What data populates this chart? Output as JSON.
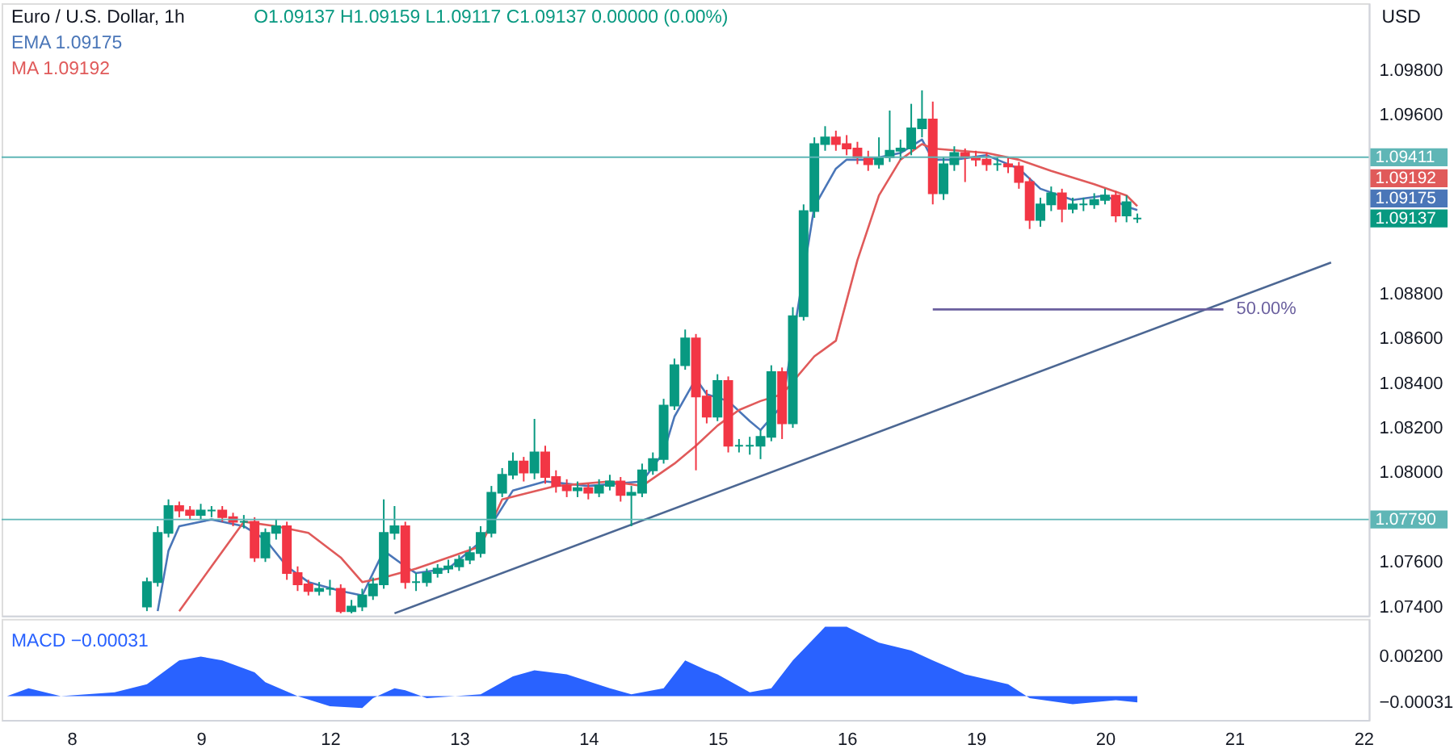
{
  "chart_data": [
    {
      "type": "candlestick",
      "title": "Euro / U.S. Dollar, 1h",
      "subtitle": "O1.09137 H1.09159 L1.09117 C1.09137 0.00000 (0.00%)",
      "ylabel": "USD",
      "legend": "top left",
      "tick_labels": "y",
      "categories": [
        null,
        null,
        null,
        null,
        null,
        null,
        "8",
        null,
        null,
        null,
        null,
        null,
        null,
        null,
        null,
        null,
        null,
        null,
        "9",
        null,
        null,
        null,
        null,
        null,
        null,
        null,
        null,
        null,
        null,
        null,
        "12",
        null,
        null,
        null,
        null,
        null,
        null,
        null,
        null,
        null,
        null,
        null,
        "13",
        null,
        null,
        null,
        null,
        null,
        null,
        null,
        null,
        null,
        null,
        null,
        "14",
        null,
        null,
        null,
        null,
        null,
        null,
        null,
        null,
        null,
        null,
        null,
        "15",
        null,
        null,
        null,
        null,
        null,
        null,
        null,
        null,
        null,
        null,
        null,
        "16",
        null,
        null,
        null,
        null,
        null,
        null,
        null,
        null,
        null,
        null,
        null,
        "19",
        null,
        null,
        null,
        null,
        null,
        null,
        null,
        null,
        null,
        null,
        null,
        "20",
        null,
        null,
        null,
        null,
        null,
        null,
        null,
        null,
        null,
        null,
        null,
        "21",
        null,
        null,
        null,
        null,
        null,
        null,
        null,
        null,
        null,
        null,
        null,
        "22"
      ],
      "ylim": [
        1.0736,
        1.101
      ],
      "yticks": [
        {
          "value": 1.074,
          "label": "1.07400"
        },
        {
          "value": 1.076,
          "label": "1.07600"
        },
        {
          "value": 1.08,
          "label": "1.08000"
        },
        {
          "value": 1.082,
          "label": "1.08200"
        },
        {
          "value": 1.084,
          "label": "1.08400"
        },
        {
          "value": 1.086,
          "label": "1.08600"
        },
        {
          "value": 1.088,
          "label": "1.08800"
        },
        {
          "value": 1.096,
          "label": "1.09600"
        },
        {
          "value": 1.098,
          "label": "1.09800"
        }
      ],
      "ohlc": [
        null,
        null,
        null,
        null,
        null,
        null,
        null,
        null,
        null,
        null,
        null,
        null,
        null,
        [
          1.074,
          1.0753,
          1.0738,
          1.0751
        ],
        [
          1.0751,
          1.0776,
          1.0749,
          1.0773
        ],
        [
          1.0773,
          1.0788,
          1.0771,
          1.0785
        ],
        [
          1.0785,
          1.0787,
          1.078,
          1.0783
        ],
        [
          1.0783,
          1.0785,
          1.0779,
          1.0781
        ],
        [
          1.0781,
          1.0786,
          1.0779,
          1.0783
        ],
        [
          1.0783,
          1.0785,
          1.078,
          1.0783
        ],
        [
          1.0783,
          1.0785,
          1.0778,
          1.078
        ],
        [
          1.078,
          1.0782,
          1.0776,
          1.0778
        ],
        [
          1.0778,
          1.0781,
          1.0775,
          1.0778
        ],
        [
          1.0778,
          1.078,
          1.076,
          1.0762
        ],
        [
          1.0762,
          1.0775,
          1.076,
          1.0773
        ],
        [
          1.0773,
          1.0779,
          1.077,
          1.0776
        ],
        [
          1.0776,
          1.0778,
          1.0752,
          1.0755
        ],
        [
          1.0755,
          1.0758,
          1.0747,
          1.075
        ],
        [
          1.075,
          1.0752,
          1.0745,
          1.0747
        ],
        [
          1.0747,
          1.0751,
          1.0745,
          1.0748
        ],
        [
          1.0748,
          1.0752,
          1.0745,
          1.0748
        ],
        [
          1.0748,
          1.075,
          1.0737,
          1.0738
        ],
        [
          1.0738,
          1.0743,
          1.0737,
          1.074
        ],
        [
          1.074,
          1.0748,
          1.0738,
          1.0745
        ],
        [
          1.0745,
          1.0753,
          1.0743,
          1.075
        ],
        [
          1.075,
          1.0788,
          1.0748,
          1.0773
        ],
        [
          1.0773,
          1.0785,
          1.077,
          1.0776
        ],
        [
          1.0776,
          1.0778,
          1.0748,
          1.0751
        ],
        [
          1.0751,
          1.0755,
          1.0747,
          1.0751
        ],
        [
          1.0751,
          1.0757,
          1.0749,
          1.0755
        ],
        [
          1.0755,
          1.0759,
          1.0753,
          1.0757
        ],
        [
          1.0757,
          1.0761,
          1.0755,
          1.0758
        ],
        [
          1.0758,
          1.0763,
          1.0756,
          1.0761
        ],
        [
          1.0761,
          1.0767,
          1.0759,
          1.0764
        ],
        [
          1.0764,
          1.0776,
          1.0762,
          1.0773
        ],
        [
          1.0773,
          1.0794,
          1.0771,
          1.0791
        ],
        [
          1.0791,
          1.0802,
          1.0789,
          1.0799
        ],
        [
          1.0799,
          1.0809,
          1.0797,
          1.0805
        ],
        [
          1.0805,
          1.0807,
          1.0796,
          1.08
        ],
        [
          1.08,
          1.0824,
          1.0797,
          1.0809
        ],
        [
          1.0809,
          1.0812,
          1.0795,
          1.0798
        ],
        [
          1.0798,
          1.0801,
          1.0791,
          1.0794
        ],
        [
          1.0794,
          1.0797,
          1.0789,
          1.0792
        ],
        [
          1.0792,
          1.0796,
          1.0789,
          1.0793
        ],
        [
          1.0793,
          1.0795,
          1.0788,
          1.0791
        ],
        [
          1.0791,
          1.0797,
          1.0789,
          1.0794
        ],
        [
          1.0794,
          1.0799,
          1.0792,
          1.0796
        ],
        [
          1.0796,
          1.0798,
          1.0787,
          1.079
        ],
        [
          1.079,
          1.0794,
          1.0776,
          1.0791
        ],
        [
          1.0791,
          1.0804,
          1.0789,
          1.0801
        ],
        [
          1.0801,
          1.0809,
          1.0799,
          1.0806
        ],
        [
          1.0806,
          1.0833,
          1.0804,
          1.083
        ],
        [
          1.083,
          1.0851,
          1.0828,
          1.0848
        ],
        [
          1.0848,
          1.0864,
          1.0846,
          1.086
        ],
        [
          1.086,
          1.0862,
          1.0801,
          1.0834
        ],
        [
          1.0834,
          1.0837,
          1.0822,
          1.0825
        ],
        [
          1.0825,
          1.0844,
          1.0823,
          1.0841
        ],
        [
          1.0841,
          1.0843,
          1.0809,
          1.0812
        ],
        [
          1.0812,
          1.0815,
          1.0809,
          1.0812
        ],
        [
          1.0812,
          1.0816,
          1.0808,
          1.0812
        ],
        [
          1.0812,
          1.0819,
          1.0806,
          1.0816
        ],
        [
          1.0816,
          1.0848,
          1.0814,
          1.0845
        ],
        [
          1.0845,
          1.0847,
          1.0815,
          1.0822
        ],
        [
          1.0822,
          1.0874,
          1.082,
          1.087
        ],
        [
          1.087,
          1.092,
          1.0868,
          1.0917
        ],
        [
          1.0917,
          1.095,
          1.0914,
          1.0947
        ],
        [
          1.0947,
          1.0955,
          1.0944,
          1.095
        ],
        [
          1.095,
          1.0953,
          1.0944,
          1.0947
        ],
        [
          1.0947,
          1.0951,
          1.0942,
          1.0945
        ],
        [
          1.0945,
          1.0948,
          1.0938,
          1.0941
        ],
        [
          1.0941,
          1.0944,
          1.0935,
          1.0938
        ],
        [
          1.0938,
          1.095,
          1.0936,
          1.0941
        ],
        [
          1.0941,
          1.0962,
          1.0939,
          1.0944
        ],
        [
          1.0944,
          1.0949,
          1.094,
          1.0945
        ],
        [
          1.0945,
          1.0965,
          1.0942,
          1.0954
        ],
        [
          1.0954,
          1.0971,
          1.095,
          1.0958
        ],
        [
          1.0958,
          1.0966,
          1.092,
          1.0925
        ],
        [
          1.0925,
          1.0941,
          1.0922,
          1.0938
        ],
        [
          1.0938,
          1.0946,
          1.0935,
          1.0943
        ],
        [
          1.0943,
          1.0945,
          1.093,
          1.0941
        ],
        [
          1.0941,
          1.0944,
          1.0937,
          1.094
        ],
        [
          1.094,
          1.0943,
          1.0935,
          1.0938
        ],
        [
          1.0938,
          1.0941,
          1.0935,
          1.0938
        ],
        [
          1.0938,
          1.0941,
          1.0934,
          1.0937
        ],
        [
          1.0937,
          1.0939,
          1.0927,
          1.093
        ],
        [
          1.093,
          1.0932,
          1.0909,
          1.0913
        ],
        [
          1.0913,
          1.0923,
          1.091,
          1.092
        ],
        [
          1.092,
          1.0928,
          1.0917,
          1.0925
        ],
        [
          1.0925,
          1.0927,
          1.0912,
          1.0918
        ],
        [
          1.0918,
          1.0923,
          1.0916,
          1.092
        ],
        [
          1.092,
          1.0923,
          1.0917,
          1.092
        ],
        [
          1.092,
          1.0925,
          1.0918,
          1.0922
        ],
        [
          1.0922,
          1.0927,
          1.092,
          1.0924
        ],
        [
          1.0924,
          1.0926,
          1.0912,
          1.0915
        ],
        [
          1.0915,
          1.0924,
          1.0912,
          1.0921
        ],
        [
          1.09137,
          1.09159,
          1.09117,
          1.09137
        ],
        null,
        null,
        null,
        null,
        null,
        null,
        null,
        null,
        null,
        null,
        null,
        null,
        null,
        null,
        null,
        null,
        null,
        null,
        null,
        null,
        null
      ],
      "colors": [
        null,
        null,
        null,
        null,
        null,
        null,
        null,
        null,
        null,
        null,
        null,
        null,
        null,
        "#089981",
        "#089981",
        "#089981",
        "#f23645",
        "#f23645",
        "#089981",
        "#089981",
        "#f23645",
        "#f23645",
        "#089981",
        "#f23645",
        "#089981",
        "#089981",
        "#f23645",
        "#f23645",
        "#f23645",
        "#089981",
        "#089981",
        "#f23645",
        "#089981",
        "#089981",
        "#089981",
        "#089981",
        "#089981",
        "#f23645",
        "#089981",
        "#089981",
        "#089981",
        "#089981",
        "#089981",
        "#089981",
        "#089981",
        "#089981",
        "#089981",
        "#089981",
        "#f23645",
        "#089981",
        "#f23645",
        "#f23645",
        "#f23645",
        "#089981",
        "#f23645",
        "#089981",
        "#089981",
        "#f23645",
        "#089981",
        "#089981",
        "#089981",
        "#089981",
        "#089981",
        "#089981",
        "#f23645",
        "#f23645",
        "#089981",
        "#f23645",
        "#089981",
        "#089981",
        "#089981",
        "#089981",
        "#f23645",
        "#089981",
        "#089981",
        "#089981",
        "#089981",
        "#f23645",
        "#f23645",
        "#f23645",
        "#f23645",
        "#089981",
        "#089981",
        "#089981",
        "#089981",
        "#089981",
        "#f23645",
        "#089981",
        "#089981",
        "#f23645",
        "#f23645",
        "#f23645",
        "#089981",
        "#f23645",
        "#f23645",
        "#f23645",
        "#089981",
        "#089981",
        "#f23645",
        "#089981",
        "#089981",
        "#089981",
        "#089981",
        "#f23645",
        "#089981",
        "#089981",
        null,
        null,
        null,
        null,
        null,
        null,
        null,
        null,
        null,
        null,
        null,
        null,
        null,
        null,
        null,
        null,
        null,
        null,
        null,
        null,
        null
      ],
      "value_labels": [
        null,
        null,
        null,
        null,
        null,
        null,
        null,
        null,
        null,
        null,
        null,
        null,
        null,
        null,
        null,
        null,
        null,
        null,
        null,
        null,
        null,
        null,
        null,
        null,
        null,
        null,
        null,
        null,
        null,
        null,
        null,
        null,
        null,
        null,
        null,
        null,
        null,
        null,
        null,
        null,
        null,
        null,
        null,
        null,
        null,
        null,
        null,
        null,
        null,
        null,
        null,
        null,
        null,
        null,
        null,
        null,
        null,
        null,
        null,
        null,
        null,
        null,
        null,
        null,
        null,
        null,
        null,
        null,
        null,
        null,
        null,
        null,
        null,
        null,
        null,
        null,
        null,
        null,
        null,
        null,
        null,
        null,
        null,
        null,
        null,
        null,
        null,
        null,
        null,
        null,
        null,
        null,
        null,
        null,
        null,
        null,
        null,
        null,
        null,
        null,
        null,
        null,
        null,
        null,
        null,
        "1.09137",
        null,
        null,
        null,
        null,
        null,
        null,
        null,
        null,
        null,
        null,
        null,
        null,
        null,
        null,
        null,
        null,
        null,
        null,
        null,
        null,
        null
      ],
      "series": [
        {
          "name": "EMA 1.09175",
          "type": "line",
          "color": "#4a76b8",
          "values": [
            null,
            null,
            null,
            null,
            null,
            null,
            null,
            null,
            null,
            null,
            null,
            null,
            null,
            null,
            1.0738,
            1.0765,
            1.0776,
            null,
            null,
            1.0779,
            null,
            null,
            1.0776,
            null,
            1.077,
            null,
            1.0758,
            null,
            1.0751,
            null,
            null,
            1.0747,
            null,
            1.0745,
            null,
            1.0765,
            null,
            1.0758,
            1.0755,
            null,
            null,
            1.0757,
            null,
            null,
            1.0769,
            null,
            null,
            1.0792,
            null,
            null,
            1.0796,
            null,
            null,
            null,
            1.0794,
            null,
            null,
            null,
            null,
            1.0796,
            null,
            1.0809,
            1.0825,
            null,
            1.0842,
            1.0835,
            null,
            1.0832,
            null,
            1.0823,
            1.0819,
            null,
            1.083,
            null,
            null,
            1.0919,
            null,
            1.0936,
            1.094,
            null,
            1.094,
            null,
            null,
            1.0943,
            null,
            1.0949,
            1.094,
            null,
            1.094,
            null,
            null,
            1.0942,
            null,
            null,
            1.0936,
            null,
            1.0927,
            null,
            null,
            1.0922,
            null,
            null,
            1.0924,
            null,
            1.0919,
            1.09175,
            null,
            null,
            null,
            null,
            null,
            null,
            null,
            null,
            null,
            null,
            null,
            null,
            null,
            null,
            null,
            null,
            null,
            null,
            null,
            null,
            null
          ]
        },
        {
          "name": "MA 1.09192",
          "type": "line",
          "color": "#e05a5a",
          "values": [
            null,
            null,
            null,
            null,
            null,
            null,
            null,
            null,
            null,
            null,
            null,
            null,
            null,
            null,
            null,
            null,
            1.0738,
            null,
            null,
            1.0758,
            null,
            null,
            1.0778,
            null,
            null,
            1.0776,
            null,
            null,
            1.0773,
            null,
            null,
            1.0762,
            null,
            1.0751,
            null,
            1.0753,
            null,
            null,
            1.0757,
            null,
            null,
            1.0762,
            null,
            null,
            1.0767,
            null,
            1.0788,
            null,
            null,
            null,
            null,
            1.0794,
            null,
            null,
            null,
            null,
            1.0796,
            null,
            null,
            1.0794,
            null,
            null,
            1.0804,
            null,
            1.0812,
            null,
            1.0821,
            null,
            1.0828,
            null,
            1.0832,
            null,
            1.0835,
            null,
            null,
            1.0852,
            null,
            1.0859,
            null,
            1.0895,
            null,
            1.0924,
            null,
            1.094,
            null,
            1.0947,
            1.0945,
            null,
            null,
            null,
            null,
            1.0943,
            null,
            null,
            1.094,
            null,
            null,
            1.0935,
            null,
            null,
            null,
            1.0929,
            null,
            null,
            1.0924,
            1.09192,
            null,
            null,
            null,
            null,
            null,
            null,
            null,
            null,
            null,
            null,
            null,
            null,
            null,
            null,
            null,
            null,
            null,
            null,
            null,
            null,
            null
          ]
        },
        {
          "type": "line",
          "color": "#4c6793",
          "values": [
            null,
            null,
            null,
            null,
            null,
            null,
            null,
            null,
            null,
            null,
            null,
            null,
            null,
            null,
            null,
            null,
            null,
            null,
            null,
            null,
            null,
            null,
            null,
            null,
            null,
            null,
            null,
            null,
            null,
            null,
            null,
            null,
            null,
            null,
            null,
            null,
            1.0737,
            null,
            null,
            null,
            null,
            null,
            null,
            null,
            null,
            null,
            null,
            null,
            null,
            null,
            null,
            null,
            null,
            null,
            null,
            null,
            null,
            null,
            null,
            null,
            null,
            null,
            null,
            null,
            null,
            null,
            null,
            null,
            null,
            null,
            null,
            null,
            null,
            null,
            null,
            null,
            null,
            null,
            null,
            null,
            null,
            null,
            null,
            null,
            null,
            null,
            null,
            null,
            null,
            null,
            null,
            null,
            null,
            null,
            null,
            null,
            null,
            null,
            null,
            null,
            null,
            null,
            null,
            null,
            null,
            null,
            null,
            null,
            null,
            null,
            null,
            null,
            null,
            null,
            null,
            null,
            null,
            null,
            null,
            null,
            null,
            null,
            null,
            1.0894,
            null,
            null,
            null
          ]
        },
        {
          "type": "line",
          "color": "#6a5f9e",
          "values": [
            null,
            null,
            null,
            null,
            null,
            null,
            null,
            null,
            null,
            null,
            null,
            null,
            null,
            null,
            null,
            null,
            null,
            null,
            null,
            null,
            null,
            null,
            null,
            null,
            null,
            null,
            null,
            null,
            null,
            null,
            null,
            null,
            null,
            null,
            null,
            null,
            null,
            null,
            null,
            null,
            null,
            null,
            null,
            null,
            null,
            null,
            null,
            null,
            null,
            null,
            null,
            null,
            null,
            null,
            null,
            null,
            null,
            null,
            null,
            null,
            null,
            null,
            null,
            null,
            null,
            null,
            null,
            null,
            null,
            null,
            null,
            null,
            null,
            null,
            null,
            null,
            null,
            null,
            null,
            null,
            null,
            null,
            null,
            null,
            null,
            null,
            1.0873,
            null,
            null,
            null,
            null,
            null,
            null,
            null,
            null,
            null,
            null,
            null,
            null,
            null,
            null,
            null,
            null,
            null,
            null,
            null,
            null,
            null,
            null,
            null,
            null,
            null,
            null,
            1.0873,
            null,
            null,
            null,
            null,
            null,
            null,
            null,
            null,
            null,
            null,
            null,
            null,
            null
          ]
        }
      ],
      "ref_lines": [
        {
          "axis": "y",
          "value": 1.09411,
          "label": "1.09411",
          "color": "#5fb6b6"
        },
        {
          "axis": "y",
          "value": 1.0779,
          "label": "1.07790",
          "color": "#5fb6b6"
        }
      ],
      "annotations": [
        "50.00%",
        "1.09175",
        "1.09192"
      ]
    },
    {
      "type": "area",
      "legend": "top left",
      "categories": [
        null,
        null,
        null,
        null,
        null,
        null,
        "8",
        null,
        null,
        null,
        null,
        null,
        null,
        null,
        null,
        null,
        null,
        null,
        "9",
        null,
        null,
        null,
        null,
        null,
        null,
        null,
        null,
        null,
        null,
        null,
        "12",
        null,
        null,
        null,
        null,
        null,
        null,
        null,
        null,
        null,
        null,
        null,
        "13",
        null,
        null,
        null,
        null,
        null,
        null,
        null,
        null,
        null,
        null,
        null,
        "14",
        null,
        null,
        null,
        null,
        null,
        null,
        null,
        null,
        null,
        null,
        null,
        "15",
        null,
        null,
        null,
        null,
        null,
        null,
        null,
        null,
        null,
        null,
        null,
        "16",
        null,
        null,
        null,
        null,
        null,
        null,
        null,
        null,
        null,
        null,
        null,
        "19",
        null,
        null,
        null,
        null,
        null,
        null,
        null,
        null,
        null,
        null,
        null,
        "20",
        null,
        null,
        null,
        null,
        null,
        null,
        null,
        null,
        null,
        null,
        null,
        "21",
        null,
        null,
        null,
        null,
        null,
        null,
        null,
        null,
        null,
        null,
        null,
        "22"
      ],
      "ylim": [
        -0.0012,
        0.0039
      ],
      "yticks": [
        {
          "value": -0.00031,
          "label": "−0.00031"
        },
        {
          "value": 0.002,
          "label": "0.00200"
        }
      ],
      "series": [
        {
          "name": "MACD −0.00031",
          "color": "#2962ff",
          "values": [
            0,
            null,
            0.0004,
            null,
            null,
            0,
            null,
            null,
            null,
            null,
            0.0002,
            null,
            null,
            0.0006,
            null,
            null,
            0.0018,
            null,
            0.002,
            null,
            0.0018,
            null,
            null,
            0.0012,
            0.0007,
            null,
            null,
            0,
            null,
            null,
            -0.0005,
            null,
            null,
            -0.0006,
            -0.0001,
            null,
            0.0004,
            0.0003,
            null,
            -0.0001,
            null,
            null,
            null,
            null,
            0.0001,
            null,
            null,
            0.001,
            null,
            0.0013,
            null,
            null,
            0.0011,
            null,
            null,
            null,
            0.0004,
            null,
            0.0001,
            null,
            null,
            0.0004,
            null,
            0.0018,
            null,
            0.0013,
            0.0011,
            null,
            null,
            0.0002,
            null,
            0.0004,
            null,
            0.0018,
            null,
            null,
            0.0035,
            null,
            0.0035,
            null,
            null,
            0.0027,
            null,
            null,
            0.0023,
            null,
            0.0018,
            null,
            null,
            0.0011,
            null,
            null,
            null,
            0.0006,
            null,
            -0.0001,
            null,
            null,
            null,
            -0.0004,
            null,
            null,
            null,
            -0.0002,
            null,
            -0.00031,
            null,
            null,
            null,
            null,
            null,
            null,
            null,
            null,
            null,
            null,
            null,
            null,
            null,
            null,
            null,
            null,
            null,
            null,
            null,
            null,
            null
          ]
        }
      ]
    }
  ]
}
